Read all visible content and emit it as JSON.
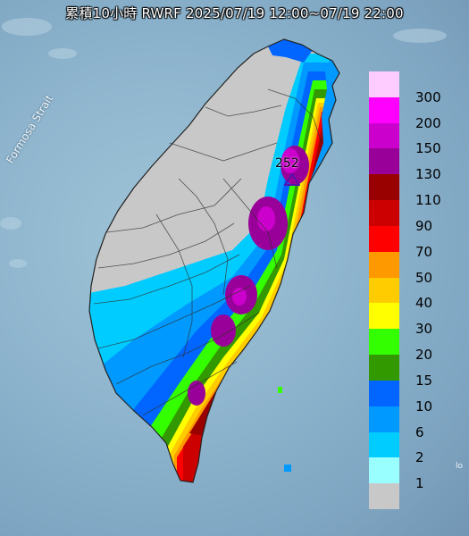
{
  "title": "累積10小時 RWRF 2025/07/19 12:00~07/19 22:00",
  "strait_label": "Formosa Strait",
  "islet_label": "lo",
  "peak": {
    "value": "252",
    "marker": "triangle-marker"
  },
  "legend": {
    "segments": [
      {
        "color": "#ffccff"
      },
      {
        "color": "#ff00ff"
      },
      {
        "color": "#cc00cc"
      },
      {
        "color": "#990099"
      },
      {
        "color": "#990000"
      },
      {
        "color": "#cc0000"
      },
      {
        "color": "#ff0000"
      },
      {
        "color": "#ff9900"
      },
      {
        "color": "#ffcc00"
      },
      {
        "color": "#ffff00"
      },
      {
        "color": "#33ff00"
      },
      {
        "color": "#339900"
      },
      {
        "color": "#0066ff"
      },
      {
        "color": "#0099ff"
      },
      {
        "color": "#00ccff"
      },
      {
        "color": "#99ffff"
      },
      {
        "color": "#c8c8c8"
      }
    ],
    "labels": [
      "300",
      "200",
      "150",
      "130",
      "110",
      "90",
      "70",
      "50",
      "40",
      "30",
      "20",
      "15",
      "10",
      "6",
      "2",
      "1"
    ]
  }
}
